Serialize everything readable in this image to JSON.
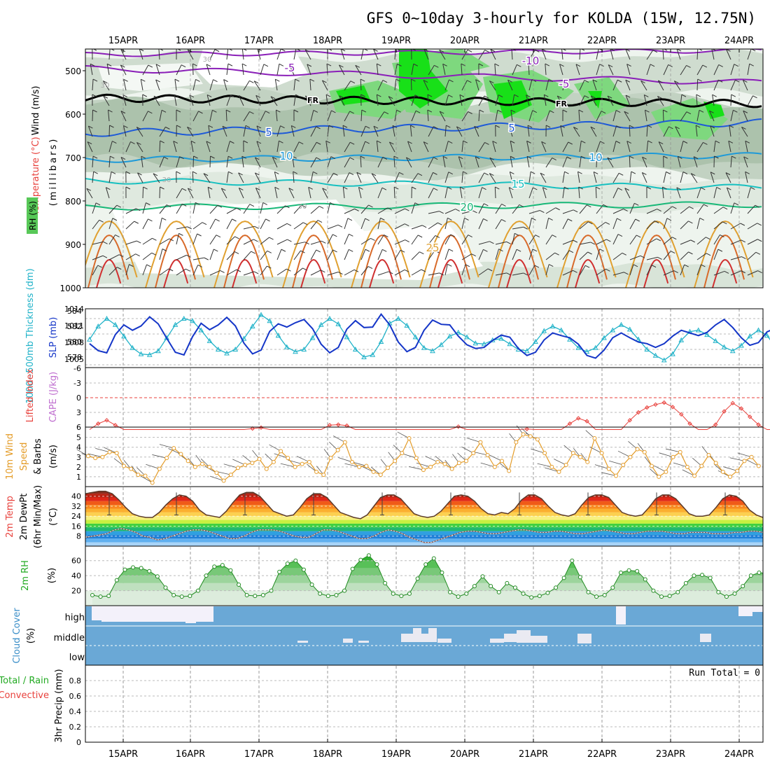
{
  "title": "GFS 0~10day 3-hourly for KOLDA (15W, 12.75N)",
  "date_labels": [
    "15APR",
    "16APR",
    "17APR",
    "18APR",
    "19APR",
    "20APR",
    "21APR",
    "22APR",
    "23APR",
    "24APR"
  ],
  "colors": {
    "frame": "#000000",
    "grid": "#999999",
    "thickness": "#22b3c9",
    "slp": "#1536c8",
    "lifted_index": "#e8413c",
    "cape": "#c070d0",
    "wind": "#e49c28",
    "barb": "#333333",
    "rh_line": "#228b22",
    "rh_fill": "#58c858",
    "cloud_fill": "#6aa8d6",
    "cloud_clear": "#f3f1fa",
    "precip_total": "#22aa22",
    "precip_conv": "#e8413c",
    "temp_purple": "#8a1fb8",
    "temp_blue": "#1e5ad8",
    "temp_sky": "#1e9ad8",
    "temp_cyan": "#18c0c0",
    "temp_green": "#18b878",
    "temp_orange": "#e0a030",
    "temp_red": "#d03030",
    "fr": "#000000",
    "rh_green": "#18e018"
  },
  "panels": {
    "upper": {
      "ylabel_wind": "Wind (m/s)",
      "ylabel_temp": "Temperature (°C)",
      "ylabel_mb": "(millibars)",
      "ylabel_rh": "RH (%)",
      "pressure_ticks": [
        "500",
        "600",
        "700",
        "800",
        "900",
        "1000"
      ],
      "contour_labels": [
        "-10",
        "-5",
        "FR",
        "FR",
        "-5",
        "5",
        "5",
        "10",
        "10",
        "15",
        "20",
        "25"
      ],
      "rh_labels": [
        "30",
        "30",
        "30",
        "30"
      ]
    },
    "slp": {
      "ylabel_left": "1000~500mb Thickness (dm)",
      "ylabel_right": "SLP (mb)",
      "left_ticks": [
        "584",
        "582",
        "580",
        "578"
      ],
      "right_ticks": [
        "1014",
        "1011",
        "1008",
        "1005"
      ]
    },
    "li": {
      "ylabel_li": "Lifted Index",
      "ylabel_cape": "CAPE (J/kg)",
      "ticks": [
        "-6",
        "-3",
        "0",
        "3",
        "6"
      ]
    },
    "wind": {
      "ylabel": "10m Wind Speed & Barbs (m/s)",
      "ylabel_a": "10m Wind",
      "ylabel_b": "Speed",
      "ylabel_c": "& Barbs",
      "ylabel_unit": "(m/s)",
      "ticks": [
        "5",
        "4",
        "3",
        "2",
        "1"
      ]
    },
    "temp": {
      "ylabel_a": "2m Temp",
      "ylabel_b": "2m DewPt",
      "ylabel_c": "(6hr Min/Max)",
      "ylabel_unit": "(°C)",
      "ticks": [
        "40",
        "32",
        "24",
        "16",
        "8"
      ]
    },
    "rh": {
      "ylabel": "2m RH",
      "unit": "(%)",
      "ticks": [
        "60",
        "40",
        "20"
      ]
    },
    "cloud": {
      "ylabel": "Cloud Cover",
      "unit": "(%)",
      "levels": [
        "high",
        "middle",
        "low"
      ]
    },
    "precip": {
      "ylabel_a": "Total / Rain",
      "ylabel_b": "Convective",
      "ylabel_c": "3hr Precip (mm)",
      "ticks": [
        "0.8",
        "0.6",
        "0.4",
        "0.2",
        "0"
      ],
      "run_total": "Run Total = 0"
    }
  },
  "chart_data": [
    {
      "type": "line",
      "title": "1000~500mb Thickness / SLP",
      "x_unit": "3-hourly steps from 14APR 12Z",
      "series": [
        {
          "name": "1000~500mb Thickness (dm)",
          "values": [
            580.3,
            582.0,
            583.0,
            582.2,
            580.7,
            579.2,
            578.4,
            578.3,
            578.8,
            580.5,
            582.2,
            583.0,
            582.7,
            581.5,
            580.1,
            579.0,
            578.5,
            579.0,
            580.4,
            582.0,
            583.5,
            582.7,
            580.8,
            579.3,
            578.7,
            579.0,
            580.5,
            582.2,
            583.0,
            582.3,
            580.6,
            579.0,
            578.0,
            578.3,
            580.0,
            582.4,
            583.0,
            582.1,
            580.6,
            579.2,
            578.8,
            579.6,
            580.7,
            581.2,
            580.6,
            579.8,
            579.7,
            580.2,
            580.4,
            579.7,
            579.0,
            578.8,
            580.0,
            581.4,
            582.0,
            581.5,
            580.3,
            579.2,
            578.7,
            579.2,
            580.5,
            581.5,
            582.2,
            581.6,
            580.3,
            579.0,
            578.2,
            577.6,
            578.4,
            580.2,
            581.3,
            581.5,
            580.9,
            580.1,
            579.3,
            578.8,
            579.5,
            580.7,
            581.5,
            580.8,
            579.3,
            578.2,
            577.9,
            578.8
          ]
        },
        {
          "name": "SLP (mb)",
          "values": [
            1007.5,
            1006.2,
            1005.8,
            1009.2,
            1011.0,
            1010.0,
            1010.8,
            1012.5,
            1011.2,
            1008.5,
            1005.9,
            1005.4,
            1008.8,
            1011.3,
            1010.1,
            1011.0,
            1012.4,
            1010.8,
            1007.6,
            1005.6,
            1006.3,
            1009.8,
            1011.2,
            1010.6,
            1011.4,
            1012.0,
            1010.3,
            1007.4,
            1005.8,
            1006.8,
            1010.2,
            1011.8,
            1010.5,
            1010.6,
            1013.0,
            1011.0,
            1007.8,
            1006.0,
            1006.8,
            1010.0,
            1011.9,
            1011.1,
            1011.0,
            1008.9,
            1007.3,
            1006.6,
            1006.8,
            1008.1,
            1009.1,
            1008.7,
            1006.6,
            1005.3,
            1005.9,
            1008.2,
            1009.5,
            1009.0,
            1008.6,
            1007.4,
            1005.3,
            1004.8,
            1006.3,
            1008.6,
            1009.5,
            1008.6,
            1007.8,
            1007.5,
            1006.8,
            1007.5,
            1008.9,
            1010.0,
            1009.5,
            1009.0,
            1009.6,
            1011.0,
            1012.0,
            1010.5,
            1008.6,
            1007.2,
            1007.7,
            1009.7,
            1010.4,
            1009.8,
            1010.8,
            1011.2
          ]
        }
      ]
    },
    {
      "type": "line",
      "title": "Lifted Index",
      "series": [
        {
          "name": "Lifted Index",
          "values": [
            6.8,
            5.3,
            4.6,
            5.6,
            6.6,
            7.5,
            8.0,
            8.0,
            8.0,
            8.0,
            8.0,
            8.0,
            8.0,
            8.0,
            8.0,
            8.0,
            8.0,
            8.0,
            7.4,
            6.3,
            6.1,
            7.0,
            8.0,
            8.0,
            8.0,
            8.0,
            8.0,
            7.2,
            5.6,
            5.5,
            5.7,
            6.8,
            8.0,
            8.0,
            8.0,
            8.0,
            8.0,
            8.0,
            8.0,
            8.0,
            8.0,
            8.0,
            6.6,
            5.9,
            6.7,
            8.0,
            8.0,
            8.0,
            8.0,
            8.0,
            6.8,
            6.4,
            7.0,
            8.0,
            8.0,
            7.0,
            5.3,
            4.2,
            4.8,
            6.6,
            8.0,
            8.0,
            6.9,
            4.6,
            3.0,
            2.0,
            1.4,
            1.0,
            1.9,
            3.4,
            5.3,
            6.9,
            7.8,
            5.5,
            2.8,
            1.1,
            2.2,
            3.9,
            5.5,
            7.0,
            8.0,
            8.0,
            5.2,
            3.2
          ]
        }
      ]
    },
    {
      "type": "line",
      "title": "10m Wind Speed",
      "series": [
        {
          "name": "10m Wind Speed (m/s)",
          "values": [
            3.1,
            2.9,
            3.0,
            3.5,
            3.4,
            2.1,
            1.8,
            1.2,
            1.1,
            0.4,
            1.8,
            2.9,
            3.9,
            3.3,
            2.6,
            2.0,
            2.3,
            2.0,
            1.4,
            0.6,
            1.2,
            1.9,
            2.2,
            2.4,
            2.8,
            1.8,
            2.5,
            3.6,
            2.9,
            2.0,
            2.3,
            2.5,
            1.5,
            1.2,
            2.9,
            3.7,
            4.5,
            2.5,
            2.0,
            2.1,
            1.5,
            1.2,
            1.9,
            2.6,
            3.4,
            4.9,
            2.9,
            1.7,
            2.0,
            2.5,
            2.3,
            1.8,
            2.4,
            2.6,
            3.4,
            4.5,
            3.2,
            2.0,
            2.6,
            1.6,
            4.5,
            5.3,
            5.1,
            4.8,
            3.4,
            2.0,
            1.5,
            2.2,
            3.4,
            3.0,
            2.5,
            4.9,
            3.4,
            1.8,
            1.1,
            2.2,
            3.0,
            3.8,
            3.5,
            2.1,
            1.0,
            1.5,
            3.0,
            3.5,
            2.0,
            1.1,
            2.1,
            3.2,
            2.4,
            1.5,
            1.0,
            1.6,
            2.6,
            3.0,
            2.1
          ]
        }
      ]
    },
    {
      "type": "area",
      "title": "2m Temp / 2m DewPt",
      "series": [
        {
          "name": "2m Temp (°C)",
          "values": [
            42,
            43,
            44,
            44,
            42,
            37,
            31,
            26,
            24,
            23,
            23,
            27,
            33,
            38,
            41,
            40,
            36,
            29,
            25,
            24,
            23,
            28,
            35,
            41,
            43,
            43,
            40,
            34,
            28,
            26,
            24,
            25,
            31,
            38,
            42,
            42,
            39,
            33,
            27,
            25,
            23,
            22,
            25,
            32,
            39,
            41,
            41,
            38,
            32,
            26,
            24,
            23,
            24,
            28,
            34,
            40,
            41,
            40,
            36,
            30,
            26,
            25,
            27,
            26,
            30,
            37,
            41,
            41,
            38,
            32,
            27,
            25,
            24,
            26,
            33,
            39,
            41,
            41,
            39,
            33,
            27,
            25,
            24,
            25,
            31,
            38,
            41,
            41,
            38,
            32,
            26,
            24,
            24,
            25,
            31,
            38,
            41,
            40,
            36,
            29,
            25,
            23
          ]
        },
        {
          "name": "2m DewPt (°C)",
          "values": [
            7,
            8,
            9,
            10,
            13,
            14,
            13,
            11,
            8,
            7,
            5,
            6,
            8,
            10,
            12,
            13,
            13,
            12,
            10,
            8,
            6,
            6,
            8,
            11,
            13,
            13,
            13,
            12,
            10,
            8,
            7,
            7,
            10,
            13,
            13,
            12,
            10,
            8,
            6,
            6,
            8,
            11,
            13,
            12,
            10,
            7,
            5,
            3,
            3,
            5,
            7,
            9,
            11,
            12,
            12,
            11,
            10,
            10,
            11,
            12,
            13,
            13,
            12,
            11,
            11,
            12,
            12,
            11,
            10,
            10,
            11,
            12,
            13,
            12,
            11,
            10,
            10,
            11,
            12,
            12,
            12,
            11,
            10,
            10,
            11,
            11,
            11,
            10,
            10,
            10,
            11,
            11,
            12,
            12,
            11
          ]
        }
      ]
    },
    {
      "type": "area",
      "title": "2m RH",
      "series": [
        {
          "name": "2m RH (%)",
          "values": [
            14,
            12,
            13,
            34,
            48,
            51,
            50,
            46,
            39,
            24,
            14,
            12,
            13,
            20,
            40,
            52,
            54,
            47,
            28,
            14,
            13,
            14,
            20,
            45,
            56,
            60,
            48,
            28,
            16,
            13,
            14,
            20,
            49,
            61,
            67,
            55,
            30,
            16,
            13,
            16,
            36,
            55,
            63,
            44,
            18,
            12,
            16,
            26,
            39,
            26,
            18,
            30,
            24,
            16,
            11,
            13,
            17,
            24,
            37,
            60,
            38,
            18,
            12,
            14,
            24,
            44,
            47,
            46,
            35,
            20,
            12,
            13,
            18,
            30,
            40,
            41,
            37,
            18,
            12,
            16,
            26,
            40,
            44,
            43
          ]
        }
      ]
    },
    {
      "type": "table",
      "title": "3hr Precip",
      "run_total": 0
    }
  ]
}
